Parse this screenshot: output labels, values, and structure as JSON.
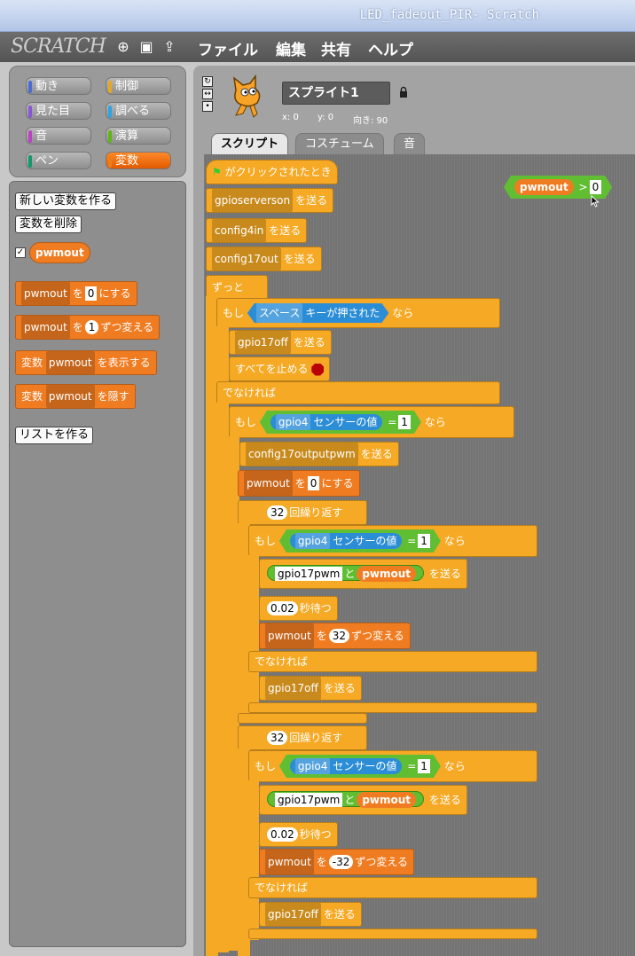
{
  "window": {
    "title": "LED_fadeout_PIR- Scratch"
  },
  "menubar": {
    "logo": "SCRATCH",
    "items": [
      "ファイル",
      "編集",
      "共有",
      "ヘルプ"
    ]
  },
  "categories": [
    {
      "label": "動き",
      "color": "#4a6cd4"
    },
    {
      "label": "制御",
      "color": "#e6a822"
    },
    {
      "label": "見た目",
      "color": "#8a55d7"
    },
    {
      "label": "調べる",
      "color": "#2ca5e2"
    },
    {
      "label": "音",
      "color": "#bb42c3"
    },
    {
      "label": "演算",
      "color": "#5cb712"
    },
    {
      "label": "ペン",
      "color": "#0e9a6c"
    },
    {
      "label": "変数",
      "color": "#ee7d16"
    }
  ],
  "palette": {
    "make_var": "新しい変数を作る",
    "delete_var": "変数を削除",
    "var_name": "pwmout",
    "set_to": {
      "var": "pwmout",
      "pre": "を",
      "value": "0",
      "post": "にする"
    },
    "change_by": {
      "var": "pwmout",
      "pre": "を",
      "value": "1",
      "post": "ずつ変える"
    },
    "show": {
      "pre": "変数",
      "var": "pwmout",
      "post": "を表示する"
    },
    "hide": {
      "pre": "変数",
      "var": "pwmout",
      "post": "を隠す"
    },
    "make_list": "リストを作る"
  },
  "sprite": {
    "name": "スプライト1",
    "x": "x: 0",
    "y": "y: 0",
    "dir": "向き: 90"
  },
  "tabs": [
    "スクリプト",
    "コスチューム",
    "音"
  ],
  "script": {
    "hat": "がクリックされたとき",
    "send": "を送る",
    "b1": "gpioserverson",
    "b2": "config4in",
    "b3": "config17out",
    "forever": "ずっと",
    "if": "もし",
    "then": "なら",
    "key": "スペース",
    "key_pressed": "キーが押された",
    "b_off": "gpio17off",
    "stop_all": "すべてを止める",
    "else": "でなければ",
    "sensor": "gpio4",
    "sensor_value": "センサーの値",
    "eq": "=",
    "one": "1",
    "b_cfg": "config17outputpwm",
    "set_var": "pwmout",
    "set_pre": "を",
    "set_val": "0",
    "set_post": "にする",
    "repeat_n": "32",
    "repeat": "回繰り返す",
    "join_str": "gpio17pwm",
    "join": "と",
    "wait_val": "0.02",
    "wait": "秒待つ",
    "change_pre": "を",
    "change_up": "32",
    "change_down": "-32",
    "change_post": "ずつ変える",
    "compare_var": "pwmout",
    "gt": ">",
    "compare_val": "0"
  }
}
